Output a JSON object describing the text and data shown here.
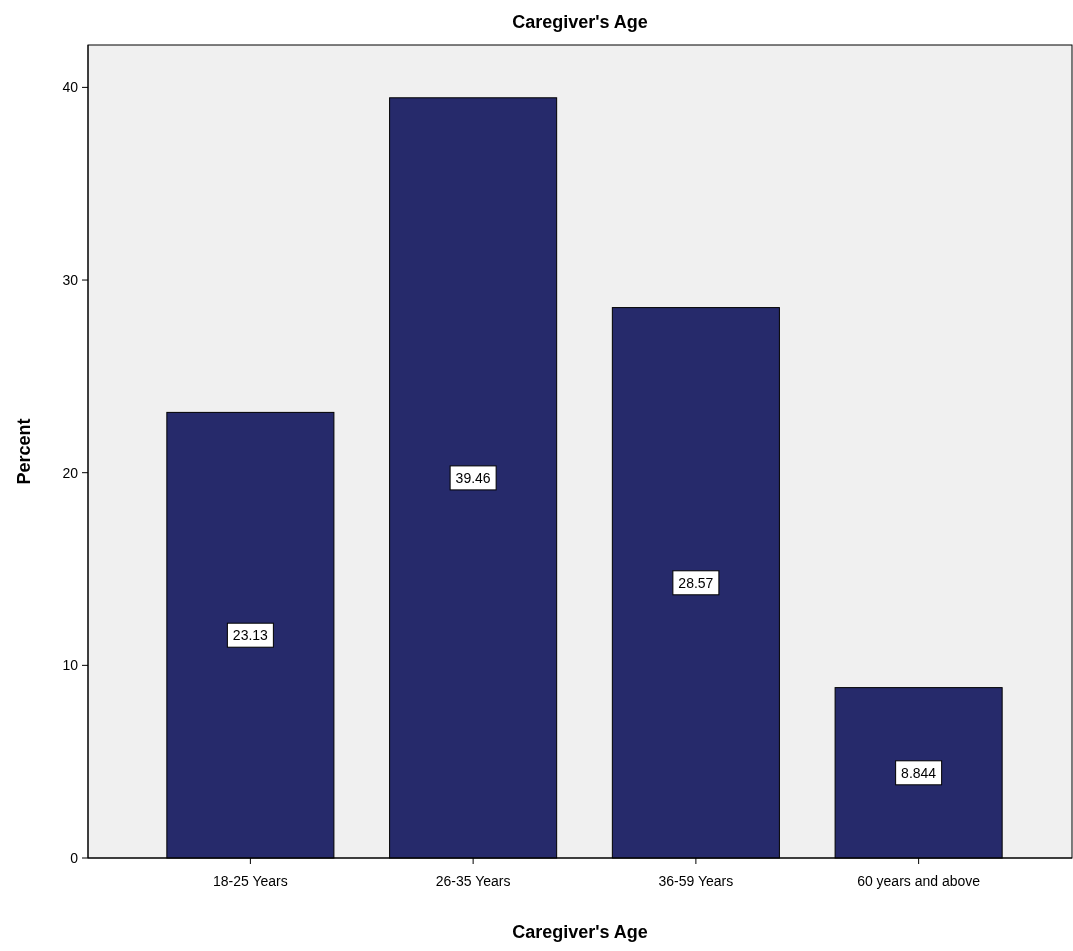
{
  "chart_data": {
    "type": "bar",
    "title": "Caregiver's Age",
    "xlabel": "Caregiver's Age",
    "ylabel": "Percent",
    "categories": [
      "18-25 Years",
      "26-35 Years",
      "36-59 Years",
      "60 years and above"
    ],
    "values": [
      23.13,
      39.46,
      28.57,
      8.844
    ],
    "color": "#262a6b",
    "data_labels": true,
    "ylim": [
      0,
      42.2
    ],
    "yticks": [
      0,
      10,
      20,
      30,
      40
    ],
    "grid": false
  }
}
